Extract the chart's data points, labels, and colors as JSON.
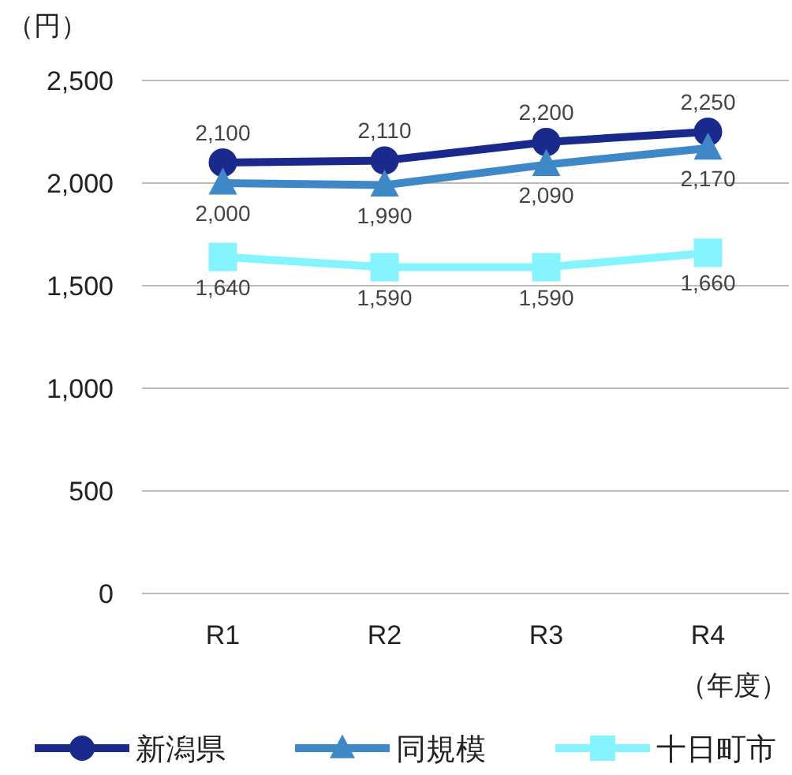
{
  "chart_data": {
    "type": "line",
    "ylabel": "（円）",
    "xlabel": "（年度）",
    "categories": [
      "R1",
      "R2",
      "R3",
      "R4"
    ],
    "series": [
      {
        "name": "新潟県",
        "color": "#1a2a8c",
        "marker": "circle",
        "values": [
          2100,
          2110,
          2200,
          2250
        ],
        "value_labels": [
          "2,100",
          "2,110",
          "2,200",
          "2,250"
        ]
      },
      {
        "name": "同規模",
        "color": "#3f88c8",
        "marker": "triangle",
        "values": [
          2000,
          1990,
          2090,
          2170
        ],
        "value_labels": [
          "2,000",
          "1,990",
          "2,090",
          "2,170"
        ]
      },
      {
        "name": "十日町市",
        "color": "#86f4ff",
        "marker": "square",
        "values": [
          1640,
          1590,
          1590,
          1660
        ],
        "value_labels": [
          "1,640",
          "1,590",
          "1,590",
          "1,660"
        ]
      }
    ],
    "ylim": [
      0,
      2500
    ],
    "yticks": [
      {
        "value": 0,
        "label": "0"
      },
      {
        "value": 500,
        "label": "500"
      },
      {
        "value": 1000,
        "label": "1,000"
      },
      {
        "value": 1500,
        "label": "1,500"
      },
      {
        "value": 2000,
        "label": "2,000"
      },
      {
        "value": 2500,
        "label": "2,500"
      }
    ],
    "grid": "y",
    "legend": "bottom",
    "line_style": "solid"
  }
}
